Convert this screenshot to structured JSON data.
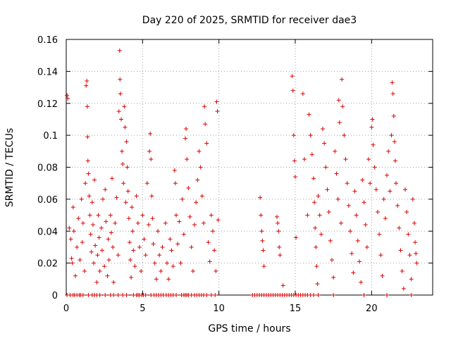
{
  "chart_data": {
    "type": "scatter",
    "title": "Day 220 of 2025, SRMTID for receiver dae3",
    "xlabel": "GPS time / hours",
    "ylabel": "SRMTID / TECUs",
    "xlim": [
      0,
      24
    ],
    "ylim": [
      0,
      0.16
    ],
    "x_ticks": [
      0,
      5,
      10,
      15,
      20
    ],
    "y_ticks": [
      0,
      0.02,
      0.04,
      0.06,
      0.08,
      0.1,
      0.12,
      0.14,
      0.16
    ],
    "x_tick_labels": [
      "0",
      "5",
      "10",
      "15",
      "20"
    ],
    "y_tick_labels": [
      "0",
      "0.02",
      "0.04",
      "0.06",
      "0.08",
      "0.1",
      "0.12",
      "0.14",
      "0.16"
    ],
    "grid": true,
    "marker": "plus",
    "color": "#dd0000",
    "series": [
      {
        "name": "SRMTID",
        "points": [
          [
            0.05,
            0.125
          ],
          [
            0.1,
            0.123
          ],
          [
            0.2,
            0.042
          ],
          [
            0.3,
            0.035
          ],
          [
            0.35,
            0.023
          ],
          [
            0.4,
            0.02
          ],
          [
            0.45,
            0.055
          ],
          [
            0.5,
            0.04
          ],
          [
            0.6,
            0.012
          ],
          [
            0.7,
            0.03
          ],
          [
            0.8,
            0.048
          ],
          [
            0.9,
            0.022
          ],
          [
            1.0,
            0.06
          ],
          [
            1.05,
            0.033
          ],
          [
            1.1,
            0.045
          ],
          [
            1.2,
            0.015
          ],
          [
            1.25,
            0.07
          ],
          [
            1.3,
            0.131
          ],
          [
            1.35,
            0.134
          ],
          [
            1.38,
            0.118
          ],
          [
            1.4,
            0.099
          ],
          [
            1.42,
            0.084
          ],
          [
            1.45,
            0.076
          ],
          [
            1.5,
            0.062
          ],
          [
            1.55,
            0.05
          ],
          [
            1.6,
            0.038
          ],
          [
            1.65,
            0.027
          ],
          [
            1.7,
            0.058
          ],
          [
            1.75,
            0.044
          ],
          [
            1.8,
            0.02
          ],
          [
            1.85,
            0.072
          ],
          [
            1.9,
            0.031
          ],
          [
            2.0,
            0.008
          ],
          [
            2.05,
            0.025
          ],
          [
            2.1,
            0.05
          ],
          [
            2.15,
            0.036
          ],
          [
            2.2,
            0.015
          ],
          [
            2.3,
            0.042
          ],
          [
            2.35,
            0.028
          ],
          [
            2.4,
            0.06
          ],
          [
            2.5,
            0.018
          ],
          [
            2.55,
            0.066
          ],
          [
            2.6,
            0.046
          ],
          [
            2.7,
            0.012
          ],
          [
            2.75,
            0.035
          ],
          [
            2.8,
            0.022
          ],
          [
            2.9,
            0.05
          ],
          [
            2.95,
            0.039
          ],
          [
            3.0,
            0.073
          ],
          [
            3.05,
            0.03
          ],
          [
            3.1,
            0.008
          ],
          [
            3.2,
            0.045
          ],
          [
            3.3,
            0.061
          ],
          [
            3.4,
            0.025
          ],
          [
            3.45,
            0.115
          ],
          [
            3.5,
            0.153
          ],
          [
            3.52,
            0.135
          ],
          [
            3.55,
            0.126
          ],
          [
            3.6,
            0.11
          ],
          [
            3.65,
            0.09
          ],
          [
            3.7,
            0.082
          ],
          [
            3.75,
            0.07
          ],
          [
            3.8,
            0.118
          ],
          [
            3.85,
            0.105
          ],
          [
            3.9,
            0.058
          ],
          [
            3.95,
            0.096
          ],
          [
            4.0,
            0.08
          ],
          [
            4.05,
            0.065
          ],
          [
            4.1,
            0.048
          ],
          [
            4.15,
            0.033
          ],
          [
            4.2,
            0.022
          ],
          [
            4.25,
            0.011
          ],
          [
            4.3,
            0.055
          ],
          [
            4.35,
            0.04
          ],
          [
            4.4,
            0.028
          ],
          [
            4.5,
            0.018
          ],
          [
            4.6,
            0.062
          ],
          [
            4.7,
            0.045
          ],
          [
            4.8,
            0.03
          ],
          [
            4.9,
            0.015
          ],
          [
            5.0,
            0.05
          ],
          [
            5.1,
            0.035
          ],
          [
            5.2,
            0.025
          ],
          [
            5.3,
            0.07
          ],
          [
            5.4,
            0.044
          ],
          [
            5.45,
            0.09
          ],
          [
            5.5,
            0.101
          ],
          [
            5.55,
            0.085
          ],
          [
            5.6,
            0.062
          ],
          [
            5.65,
            0.048
          ],
          [
            5.7,
            0.032
          ],
          [
            5.8,
            0.02
          ],
          [
            5.9,
            0.01
          ],
          [
            6.0,
            0.04
          ],
          [
            6.1,
            0.025
          ],
          [
            6.2,
            0.015
          ],
          [
            6.3,
            0.03
          ],
          [
            6.5,
            0.045
          ],
          [
            6.6,
            0.02
          ],
          [
            6.7,
            0.01
          ],
          [
            6.8,
            0.035
          ],
          [
            6.9,
            0.028
          ],
          [
            7.0,
            0.018
          ],
          [
            7.1,
            0.078
          ],
          [
            7.15,
            0.07
          ],
          [
            7.2,
            0.05
          ],
          [
            7.3,
            0.032
          ],
          [
            7.4,
            0.046
          ],
          [
            7.5,
            0.02
          ],
          [
            7.6,
            0.06
          ],
          [
            7.7,
            0.038
          ],
          [
            7.8,
            0.098
          ],
          [
            7.85,
            0.104
          ],
          [
            7.9,
            0.085
          ],
          [
            8.0,
            0.067
          ],
          [
            8.1,
            0.049
          ],
          [
            8.2,
            0.03
          ],
          [
            8.3,
            0.015
          ],
          [
            8.4,
            0.044
          ],
          [
            8.5,
            0.058
          ],
          [
            8.6,
            0.072
          ],
          [
            8.7,
            0.09
          ],
          [
            8.8,
            0.08
          ],
          [
            8.9,
            0.062
          ],
          [
            9.0,
            0.045
          ],
          [
            9.05,
            0.118
          ],
          [
            9.1,
            0.107
          ],
          [
            9.2,
            0.095
          ],
          [
            9.3,
            0.033
          ],
          [
            9.4,
            0.021
          ],
          [
            9.5,
            0.05
          ],
          [
            9.6,
            0.04
          ],
          [
            9.7,
            0.028
          ],
          [
            9.8,
            0.015
          ],
          [
            9.85,
            0.121
          ],
          [
            9.9,
            0.115
          ],
          [
            9.95,
            0.047
          ],
          [
            12.7,
            0.061
          ],
          [
            12.75,
            0.05
          ],
          [
            12.8,
            0.04
          ],
          [
            12.85,
            0.034
          ],
          [
            12.9,
            0.028
          ],
          [
            12.95,
            0.018
          ],
          [
            13.8,
            0.049
          ],
          [
            13.85,
            0.045
          ],
          [
            13.9,
            0.04
          ],
          [
            13.95,
            0.03
          ],
          [
            14.0,
            0.025
          ],
          [
            14.2,
            0.006
          ],
          [
            14.8,
            0.137
          ],
          [
            14.85,
            0.128
          ],
          [
            14.9,
            0.1
          ],
          [
            14.95,
            0.084
          ],
          [
            15.0,
            0.074
          ],
          [
            15.05,
            0.036
          ],
          [
            15.5,
            0.126
          ],
          [
            15.6,
            0.085
          ],
          [
            15.8,
            0.05
          ],
          [
            15.9,
            0.113
          ],
          [
            16.0,
            0.1
          ],
          [
            16.1,
            0.088
          ],
          [
            16.2,
            0.073
          ],
          [
            16.25,
            0.058
          ],
          [
            16.3,
            0.042
          ],
          [
            16.35,
            0.03
          ],
          [
            16.4,
            0.018
          ],
          [
            16.45,
            0.007
          ],
          [
            16.5,
            0.062
          ],
          [
            16.6,
            0.05
          ],
          [
            16.7,
            0.038
          ],
          [
            16.8,
            0.104
          ],
          [
            16.9,
            0.095
          ],
          [
            17.0,
            0.08
          ],
          [
            17.1,
            0.066
          ],
          [
            17.2,
            0.052
          ],
          [
            17.3,
            0.034
          ],
          [
            17.4,
            0.022
          ],
          [
            17.5,
            0.011
          ],
          [
            17.6,
            0.09
          ],
          [
            17.7,
            0.076
          ],
          [
            17.8,
            0.06
          ],
          [
            17.85,
            0.122
          ],
          [
            17.9,
            0.108
          ],
          [
            18.0,
            0.045
          ],
          [
            18.05,
            0.135
          ],
          [
            18.1,
            0.118
          ],
          [
            18.2,
            0.1
          ],
          [
            18.3,
            0.085
          ],
          [
            18.4,
            0.07
          ],
          [
            18.5,
            0.056
          ],
          [
            18.6,
            0.04
          ],
          [
            18.7,
            0.026
          ],
          [
            18.8,
            0.014
          ],
          [
            18.9,
            0.065
          ],
          [
            19.0,
            0.05
          ],
          [
            19.1,
            0.034
          ],
          [
            19.2,
            0.021
          ],
          [
            19.3,
            0.008
          ],
          [
            19.4,
            0.072
          ],
          [
            19.5,
            0.058
          ],
          [
            19.6,
            0.044
          ],
          [
            19.7,
            0.03
          ],
          [
            19.8,
            0.085
          ],
          [
            19.9,
            0.07
          ],
          [
            20.0,
            0.105
          ],
          [
            20.05,
            0.11
          ],
          [
            20.1,
            0.094
          ],
          [
            20.2,
            0.08
          ],
          [
            20.3,
            0.066
          ],
          [
            20.4,
            0.052
          ],
          [
            20.5,
            0.038
          ],
          [
            20.6,
            0.025
          ],
          [
            20.7,
            0.012
          ],
          [
            20.8,
            0.06
          ],
          [
            20.9,
            0.048
          ],
          [
            21.0,
            0.075
          ],
          [
            21.1,
            0.09
          ],
          [
            21.2,
            0.065
          ],
          [
            21.3,
            0.1
          ],
          [
            21.35,
            0.133
          ],
          [
            21.4,
            0.126
          ],
          [
            21.45,
            0.112
          ],
          [
            21.5,
            0.096
          ],
          [
            21.55,
            0.084
          ],
          [
            21.6,
            0.07
          ],
          [
            21.7,
            0.056
          ],
          [
            21.8,
            0.042
          ],
          [
            21.9,
            0.028
          ],
          [
            22.0,
            0.015
          ],
          [
            22.1,
            0.004
          ],
          [
            22.2,
            0.066
          ],
          [
            22.3,
            0.052
          ],
          [
            22.4,
            0.038
          ],
          [
            22.5,
            0.025
          ],
          [
            22.6,
            0.01
          ],
          [
            22.7,
            0.06
          ],
          [
            22.8,
            0.045
          ],
          [
            22.85,
            0.033
          ],
          [
            22.9,
            0.026
          ],
          [
            22.95,
            0.02
          ]
        ],
        "zeros": [
          0.05,
          0.25,
          0.45,
          0.55,
          0.7,
          0.85,
          0.95,
          1.1,
          1.45,
          1.7,
          1.85,
          2.0,
          2.2,
          2.55,
          2.9,
          3.1,
          3.4,
          3.7,
          3.95,
          4.4,
          4.6,
          4.7,
          4.8,
          4.95,
          5.05,
          5.2,
          5.55,
          5.75,
          5.9,
          6.05,
          6.2,
          6.35,
          6.55,
          6.7,
          6.85,
          7.0,
          7.2,
          7.55,
          7.7,
          7.8,
          7.9,
          8.0,
          8.2,
          8.4,
          8.55,
          8.7,
          8.85,
          9.0,
          9.2,
          9.5,
          9.75,
          12.2,
          12.35,
          12.5,
          12.65,
          12.8,
          12.95,
          13.1,
          13.25,
          13.4,
          13.55,
          13.7,
          13.85,
          14.0,
          14.15,
          14.3,
          14.45,
          14.6,
          14.75,
          14.9,
          15.05,
          15.2,
          15.35,
          15.5,
          15.65,
          15.8,
          16.0,
          16.2,
          16.5,
          17.5,
          19.5,
          21.0,
          22.6
        ]
      }
    ]
  }
}
